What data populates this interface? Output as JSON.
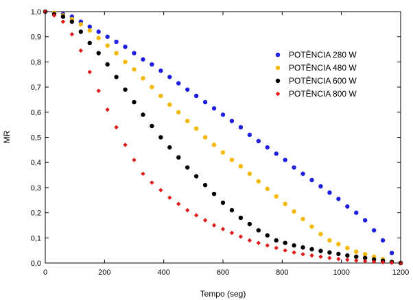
{
  "chart_data": {
    "type": "scatter",
    "title": "",
    "xlabel": "Tempo (seg)",
    "ylabel": "MR",
    "xlim": [
      0,
      1200
    ],
    "ylim": [
      0,
      1.0
    ],
    "xticks": [
      0,
      200,
      400,
      600,
      800,
      1000,
      1200
    ],
    "xtick_labels": [
      "0",
      "200",
      "400",
      "600",
      "800",
      "1000",
      "1200"
    ],
    "yticks": [
      0.0,
      0.1,
      0.2,
      0.3,
      0.4,
      0.5,
      0.6,
      0.7,
      0.8,
      0.9,
      1.0
    ],
    "ytick_labels": [
      "0,0",
      "0,1",
      "0,2",
      "0,3",
      "0,4",
      "0,5",
      "0,6",
      "0,7",
      "0,8",
      "0,9",
      "1,0"
    ],
    "grid": false,
    "legend_position": "top-right",
    "series": [
      {
        "name": "POTÊNCIA 280 W",
        "color": "#1f1fe0",
        "marker": "circle",
        "x": [
          0,
          30,
          60,
          90,
          120,
          150,
          180,
          210,
          240,
          270,
          300,
          330,
          360,
          390,
          420,
          450,
          480,
          510,
          540,
          570,
          600,
          630,
          660,
          690,
          720,
          750,
          780,
          810,
          840,
          870,
          900,
          930,
          960,
          990,
          1020,
          1050,
          1080,
          1110,
          1140,
          1170,
          1200
        ],
        "y": [
          1.0,
          0.995,
          0.99,
          0.98,
          0.96,
          0.94,
          0.92,
          0.9,
          0.88,
          0.86,
          0.835,
          0.81,
          0.79,
          0.765,
          0.74,
          0.715,
          0.69,
          0.665,
          0.64,
          0.615,
          0.59,
          0.565,
          0.54,
          0.51,
          0.485,
          0.46,
          0.435,
          0.41,
          0.38,
          0.355,
          0.33,
          0.305,
          0.28,
          0.255,
          0.225,
          0.2,
          0.17,
          0.13,
          0.09,
          0.04,
          0.0
        ]
      },
      {
        "name": "POTÊNCIA 480 W",
        "color": "#f5b800",
        "marker": "circle",
        "x": [
          0,
          30,
          60,
          90,
          120,
          150,
          180,
          210,
          240,
          270,
          300,
          330,
          360,
          390,
          420,
          450,
          480,
          510,
          540,
          570,
          600,
          630,
          660,
          690,
          720,
          750,
          780,
          810,
          840,
          870,
          900,
          930,
          960,
          990,
          1020,
          1050,
          1080,
          1110,
          1140,
          1170,
          1200
        ],
        "y": [
          1.0,
          0.995,
          0.985,
          0.97,
          0.95,
          0.925,
          0.895,
          0.865,
          0.835,
          0.8,
          0.77,
          0.735,
          0.7,
          0.665,
          0.63,
          0.6,
          0.565,
          0.535,
          0.5,
          0.47,
          0.44,
          0.41,
          0.385,
          0.355,
          0.325,
          0.295,
          0.265,
          0.235,
          0.205,
          0.175,
          0.145,
          0.115,
          0.09,
          0.075,
          0.06,
          0.045,
          0.035,
          0.025,
          0.015,
          0.005,
          0.0
        ]
      },
      {
        "name": "POTÊNCIA 600 W",
        "color": "#000000",
        "marker": "circle",
        "x": [
          0,
          30,
          60,
          90,
          120,
          150,
          180,
          210,
          240,
          270,
          300,
          330,
          360,
          390,
          420,
          450,
          480,
          510,
          540,
          570,
          600,
          630,
          660,
          690,
          720,
          750,
          780,
          810,
          840,
          870,
          900,
          930,
          960,
          990,
          1020,
          1050,
          1080,
          1110,
          1140,
          1170,
          1200
        ],
        "y": [
          1.0,
          0.99,
          0.98,
          0.96,
          0.92,
          0.875,
          0.835,
          0.79,
          0.74,
          0.69,
          0.64,
          0.59,
          0.545,
          0.5,
          0.46,
          0.42,
          0.38,
          0.345,
          0.31,
          0.275,
          0.24,
          0.21,
          0.18,
          0.155,
          0.13,
          0.11,
          0.09,
          0.08,
          0.07,
          0.062,
          0.055,
          0.048,
          0.042,
          0.036,
          0.03,
          0.025,
          0.02,
          0.014,
          0.009,
          0.004,
          0.0
        ]
      },
      {
        "name": "POTÊNCIA 800 W",
        "color": "#e01818",
        "marker": "diamond",
        "x": [
          0,
          30,
          60,
          90,
          120,
          150,
          180,
          210,
          240,
          270,
          300,
          330,
          360,
          390,
          420,
          450,
          480,
          510,
          540,
          570,
          600,
          630,
          660,
          690,
          720,
          750,
          780,
          810,
          840,
          870,
          900,
          930,
          960,
          990,
          1020,
          1050,
          1080,
          1110,
          1140,
          1170,
          1200
        ],
        "y": [
          1.0,
          0.985,
          0.96,
          0.91,
          0.845,
          0.76,
          0.685,
          0.61,
          0.54,
          0.47,
          0.41,
          0.355,
          0.32,
          0.29,
          0.26,
          0.235,
          0.21,
          0.19,
          0.17,
          0.15,
          0.135,
          0.12,
          0.105,
          0.09,
          0.08,
          0.07,
          0.06,
          0.05,
          0.042,
          0.035,
          0.03,
          0.025,
          0.02,
          0.016,
          0.013,
          0.01,
          0.007,
          0.005,
          0.003,
          0.001,
          0.0
        ]
      }
    ]
  }
}
